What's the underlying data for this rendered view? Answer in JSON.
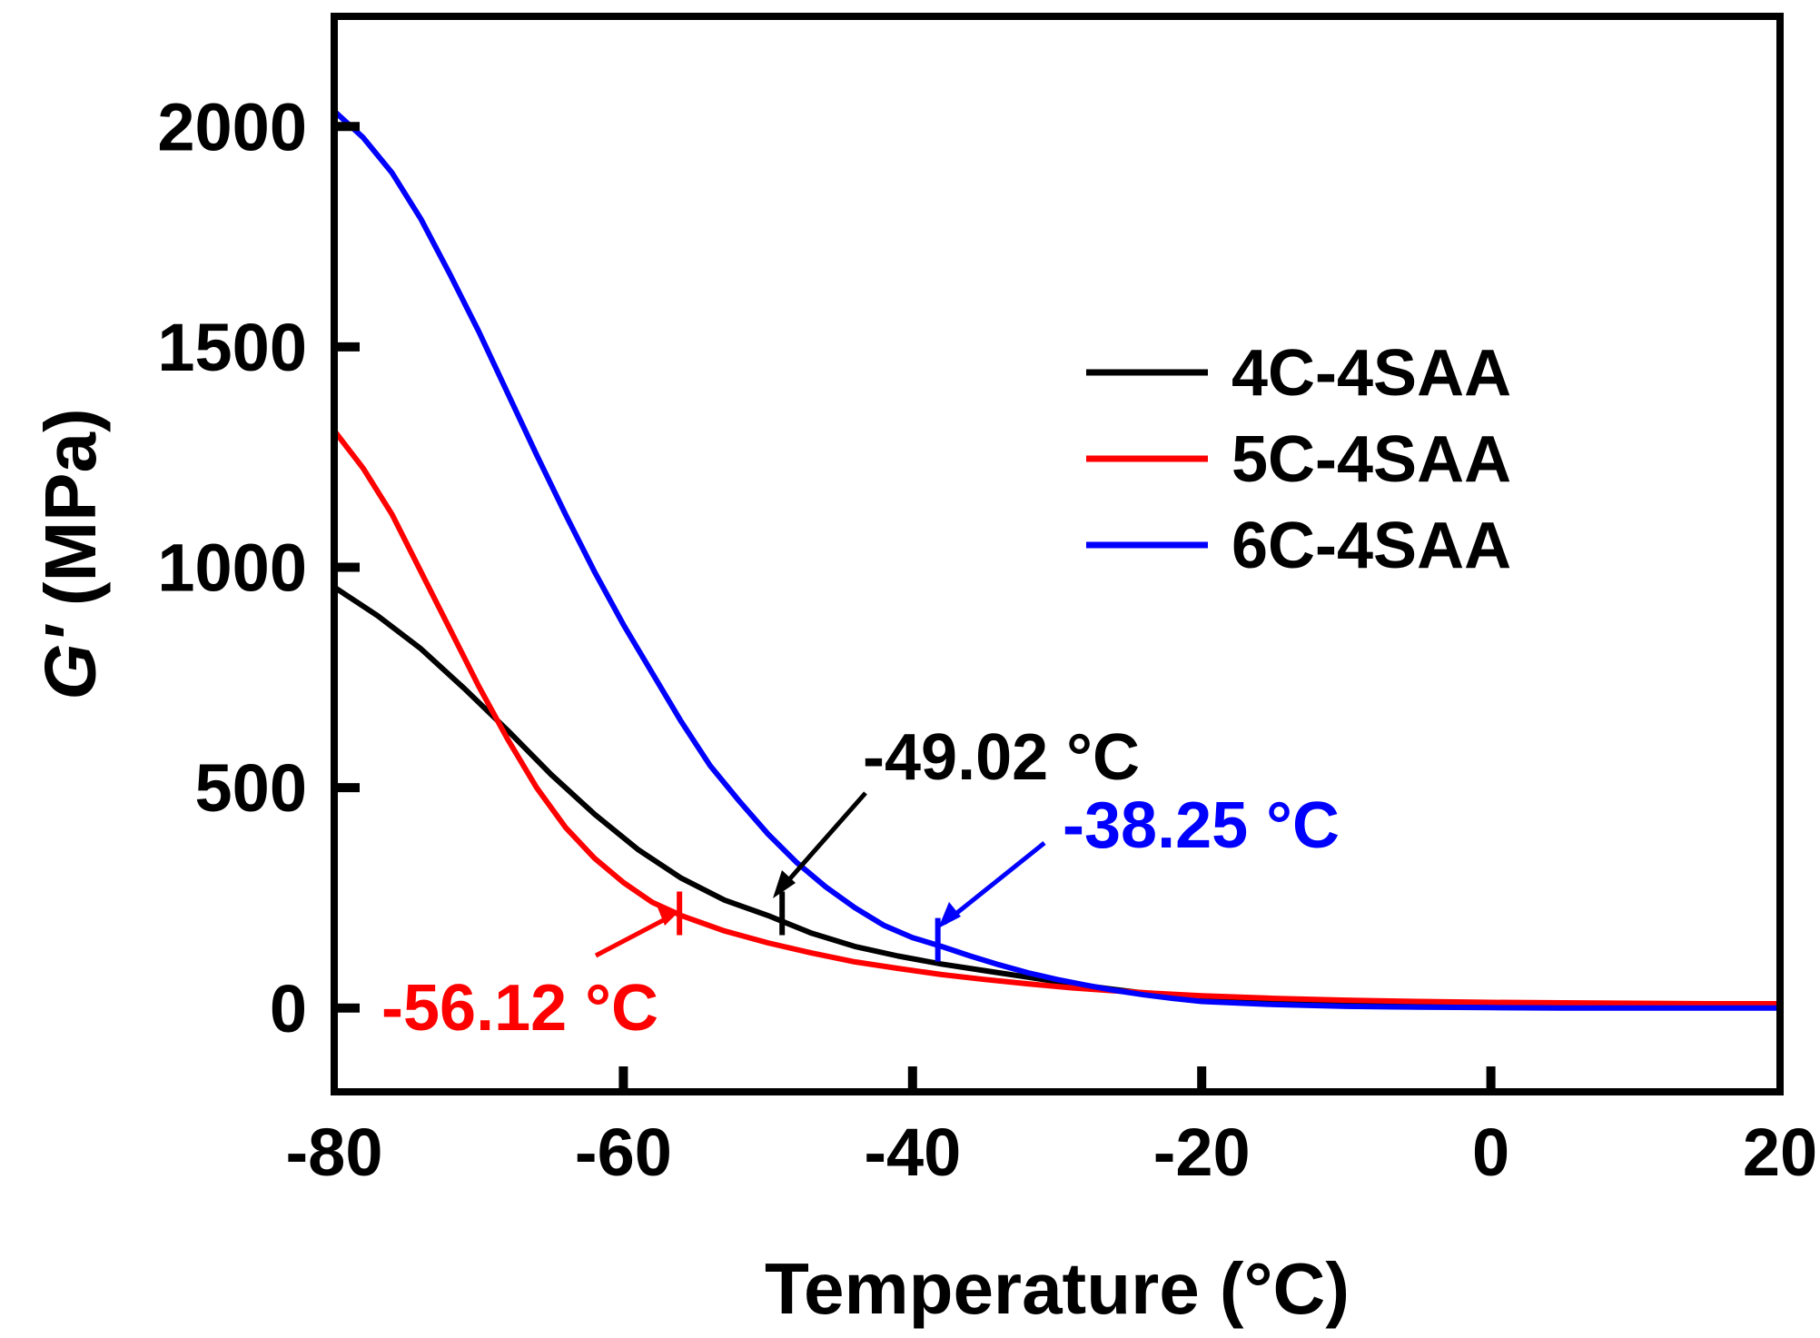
{
  "chart_data": {
    "type": "line",
    "title": "",
    "xlabel": "Temperature (°C)",
    "ylabel_italic": "G'",
    "ylabel_rest": " (MPa)",
    "xlim": [
      -80,
      20
    ],
    "ylim": [
      -190,
      2250
    ],
    "x_ticks": [
      -80,
      -60,
      -40,
      -20,
      0,
      20
    ],
    "x_tick_labels": [
      "-80",
      "-60",
      "-40",
      "-20",
      "0",
      "20"
    ],
    "y_ticks": [
      0,
      500,
      1000,
      1500,
      2000
    ],
    "y_tick_labels": [
      "0",
      "500",
      "1000",
      "1500",
      "2000"
    ],
    "grid": false,
    "legend_position": "upper-right",
    "series": [
      {
        "name": "4C-4SAA",
        "color": "#000000",
        "x": [
          -80,
          -77,
          -74,
          -71,
          -68,
          -65,
          -62,
          -59,
          -56,
          -53,
          -50,
          -47,
          -44,
          -41,
          -38,
          -35,
          -32,
          -29,
          -26,
          -23,
          -20,
          -15,
          -10,
          -5,
          0,
          5,
          10,
          15,
          20
        ],
        "y": [
          955,
          890,
          815,
          725,
          630,
          530,
          440,
          360,
          295,
          245,
          210,
          170,
          140,
          118,
          100,
          85,
          70,
          55,
          42,
          30,
          22,
          15,
          11,
          9,
          7,
          6,
          6,
          5,
          5
        ]
      },
      {
        "name": "5C-4SAA",
        "color": "#ff0000",
        "x": [
          -80,
          -78,
          -76,
          -74,
          -72,
          -70,
          -68,
          -66,
          -64,
          -62,
          -60,
          -58,
          -56,
          -53,
          -50,
          -47,
          -44,
          -41,
          -38,
          -35,
          -32,
          -29,
          -26,
          -23,
          -20,
          -15,
          -10,
          -5,
          0,
          5,
          10,
          15,
          20
        ],
        "y": [
          1310,
          1225,
          1120,
          990,
          860,
          730,
          610,
          500,
          410,
          340,
          285,
          240,
          210,
          175,
          148,
          125,
          105,
          90,
          76,
          65,
          55,
          46,
          39,
          33,
          28,
          22,
          18,
          15,
          13,
          12,
          11,
          10,
          10
        ]
      },
      {
        "name": "6C-4SAA",
        "color": "#0000ff",
        "x": [
          -80,
          -78,
          -76,
          -74,
          -72,
          -70,
          -68,
          -66,
          -64,
          -62,
          -60,
          -58,
          -56,
          -54,
          -52,
          -50,
          -48,
          -46,
          -44,
          -42,
          -40,
          -38,
          -36,
          -34,
          -32,
          -30,
          -28,
          -26,
          -24,
          -22,
          -20,
          -15,
          -10,
          -5,
          0,
          5,
          10,
          15,
          20
        ],
        "y": [
          2035,
          1975,
          1895,
          1790,
          1665,
          1535,
          1395,
          1255,
          1120,
          990,
          870,
          760,
          650,
          550,
          470,
          395,
          330,
          275,
          228,
          188,
          160,
          140,
          118,
          98,
          80,
          65,
          52,
          40,
          30,
          22,
          15,
          8,
          4,
          2,
          1,
          0,
          0,
          0,
          0
        ]
      }
    ],
    "annotations": [
      {
        "text": "-49.02 °C",
        "color": "#000000",
        "target_x": -49.02,
        "target_y": 215
      },
      {
        "text": "-38.25 °C",
        "color": "#0000ff",
        "target_x": -38.25,
        "target_y": 155
      },
      {
        "text": "-56.12 °C",
        "color": "#ff0000",
        "target_x": -56.12,
        "target_y": 215
      }
    ]
  }
}
